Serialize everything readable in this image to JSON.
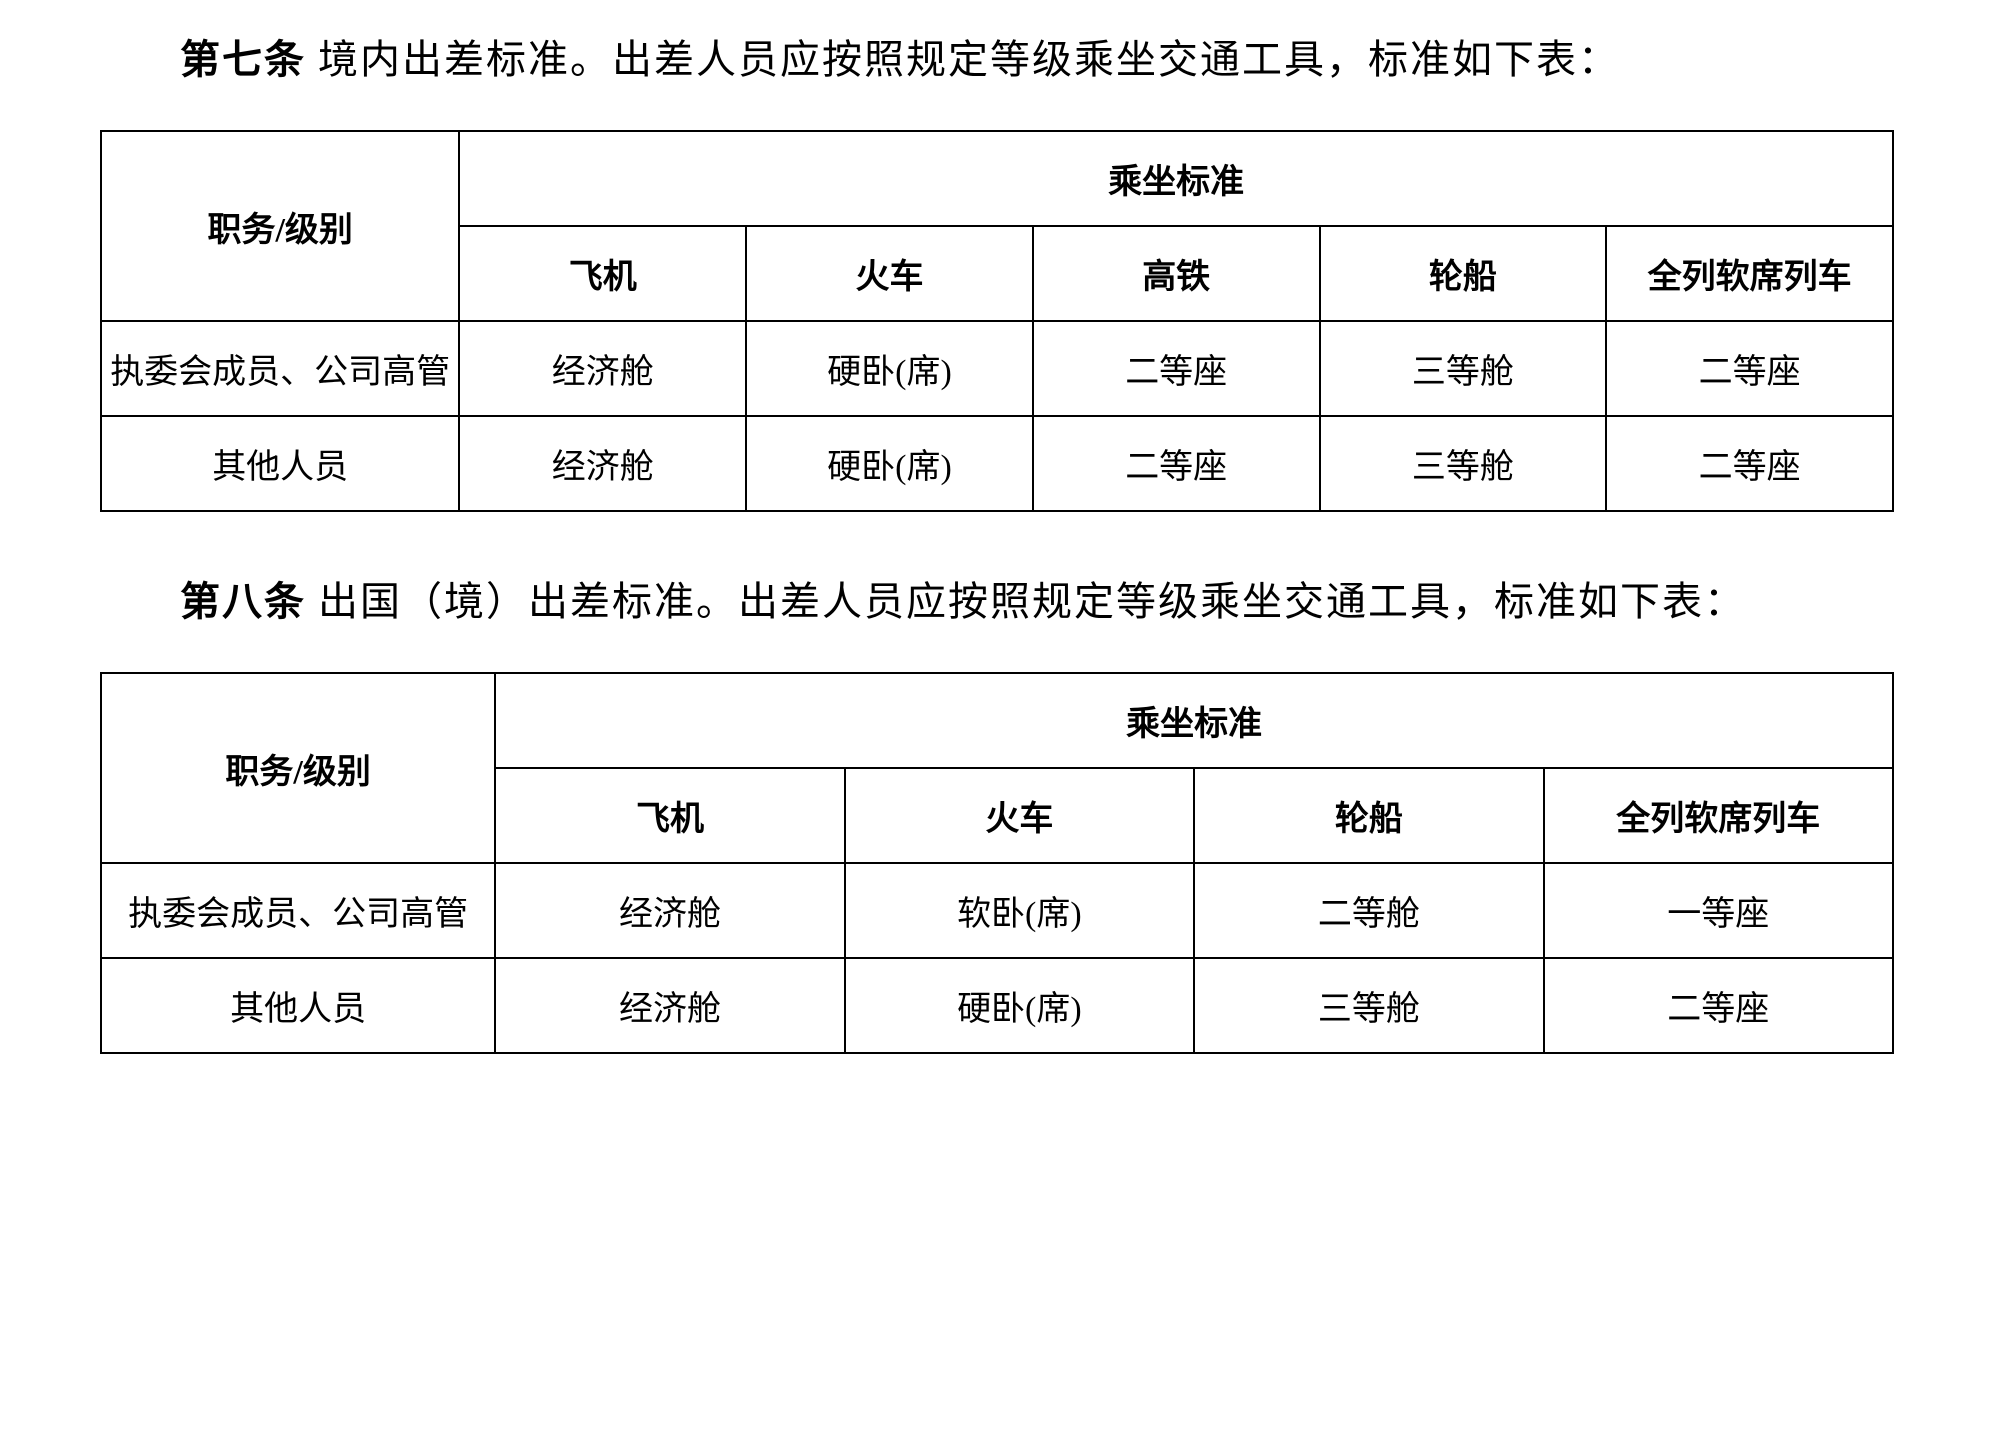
{
  "article7": {
    "heading": "第七条",
    "text": "境内出差标准。出差人员应按照规定等级乘坐交通工具，标准如下表：",
    "table": {
      "role_header": "职务/级别",
      "standard_header": "乘坐标准",
      "columns": [
        "飞机",
        "火车",
        "高铁",
        "轮船",
        "全列软席列车"
      ],
      "rows": [
        {
          "role": "执委会成员、公司高管",
          "cells": [
            "经济舱",
            "硬卧(席)",
            "二等座",
            "三等舱",
            "二等座"
          ]
        },
        {
          "role": "其他人员",
          "cells": [
            "经济舱",
            "硬卧(席)",
            "二等座",
            "三等舱",
            "二等座"
          ]
        }
      ]
    }
  },
  "article8": {
    "heading": "第八条",
    "text": "出国（境）出差标准。出差人员应按照规定等级乘坐交通工具，标准如下表：",
    "table": {
      "role_header": "职务/级别",
      "standard_header": "乘坐标准",
      "columns": [
        "飞机",
        "火车",
        "轮船",
        "全列软席列车"
      ],
      "rows": [
        {
          "role": "执委会成员、公司高管",
          "cells": [
            "经济舱",
            "软卧(席)",
            "二等舱",
            "一等座"
          ]
        },
        {
          "role": "其他人员",
          "cells": [
            "经济舱",
            "硬卧(席)",
            "三等舱",
            "二等座"
          ]
        }
      ]
    }
  }
}
